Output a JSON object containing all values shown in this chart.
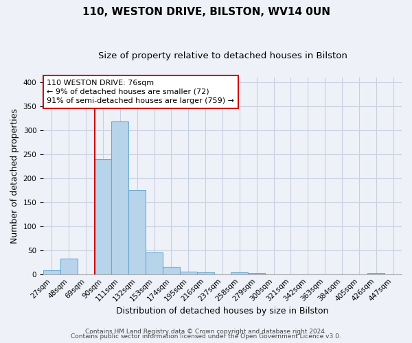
{
  "title": "110, WESTON DRIVE, BILSTON, WV14 0UN",
  "subtitle": "Size of property relative to detached houses in Bilston",
  "xlabel": "Distribution of detached houses by size in Bilston",
  "ylabel": "Number of detached properties",
  "bar_values": [
    8,
    33,
    0,
    239,
    318,
    175,
    45,
    16,
    5,
    4,
    0,
    4,
    3,
    0,
    0,
    0,
    0,
    0,
    0,
    3,
    0
  ],
  "bin_labels": [
    "27sqm",
    "48sqm",
    "69sqm",
    "90sqm",
    "111sqm",
    "132sqm",
    "153sqm",
    "174sqm",
    "195sqm",
    "216sqm",
    "237sqm",
    "258sqm",
    "279sqm",
    "300sqm",
    "321sqm",
    "342sqm",
    "363sqm",
    "384sqm",
    "405sqm",
    "426sqm",
    "447sqm"
  ],
  "bar_color": "#b8d4ea",
  "bar_edge_color": "#6aaad4",
  "vline_color": "#cc0000",
  "ylim": [
    0,
    410
  ],
  "yticks": [
    0,
    50,
    100,
    150,
    200,
    250,
    300,
    350,
    400
  ],
  "annotation_title": "110 WESTON DRIVE: 76sqm",
  "annotation_line1": "← 9% of detached houses are smaller (72)",
  "annotation_line2": "91% of semi-detached houses are larger (759) →",
  "annotation_box_color": "#ffffff",
  "annotation_box_edge": "#cc0000",
  "footer1": "Contains HM Land Registry data © Crown copyright and database right 2024.",
  "footer2": "Contains public sector information licensed under the Open Government Licence v3.0.",
  "background_color": "#eef2f8",
  "grid_color": "#c8cfe0",
  "title_fontsize": 11,
  "subtitle_fontsize": 9.5,
  "axis_label_fontsize": 9,
  "tick_fontsize": 7.5,
  "annotation_fontsize": 8,
  "footer_fontsize": 6.5
}
